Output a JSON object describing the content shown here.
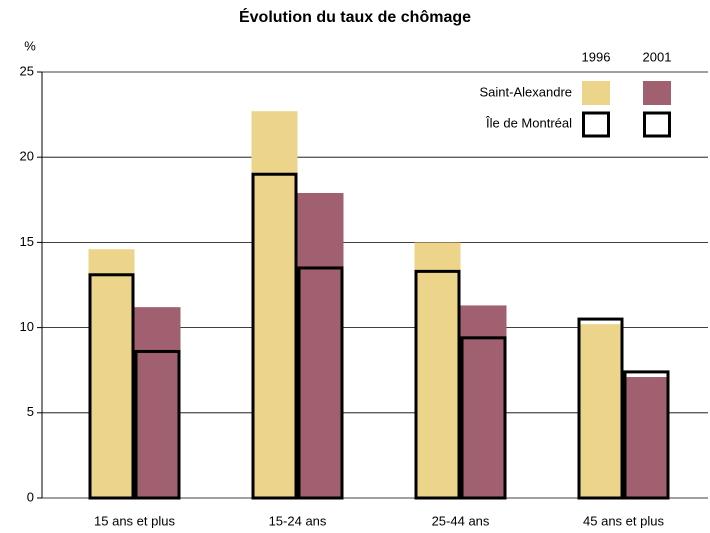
{
  "chart_data": {
    "type": "bar",
    "title": "Évolution du taux de chômage",
    "y_label": "%",
    "categories": [
      "15 ans et plus",
      "15-24 ans",
      "25-44 ans",
      "45 ans et plus"
    ],
    "years": [
      "1996",
      "2001"
    ],
    "series": [
      {
        "name": "Saint-Alexandre",
        "filled": true,
        "colors": [
          "#ecd58a",
          "#a06070"
        ],
        "values": [
          [
            14.6,
            11.2
          ],
          [
            22.7,
            17.9
          ],
          [
            15.0,
            11.3
          ],
          [
            10.2,
            7.1
          ]
        ]
      },
      {
        "name": "Île de Montréal",
        "filled": false,
        "colors": [
          "#000000",
          "#000000"
        ],
        "values": [
          [
            13.1,
            8.6
          ],
          [
            19.0,
            13.5
          ],
          [
            13.3,
            9.4
          ],
          [
            10.5,
            7.4
          ]
        ]
      }
    ],
    "ylim": [
      0,
      25
    ],
    "yticks": [
      0,
      5,
      10,
      15,
      20,
      25
    ],
    "grid": true
  }
}
